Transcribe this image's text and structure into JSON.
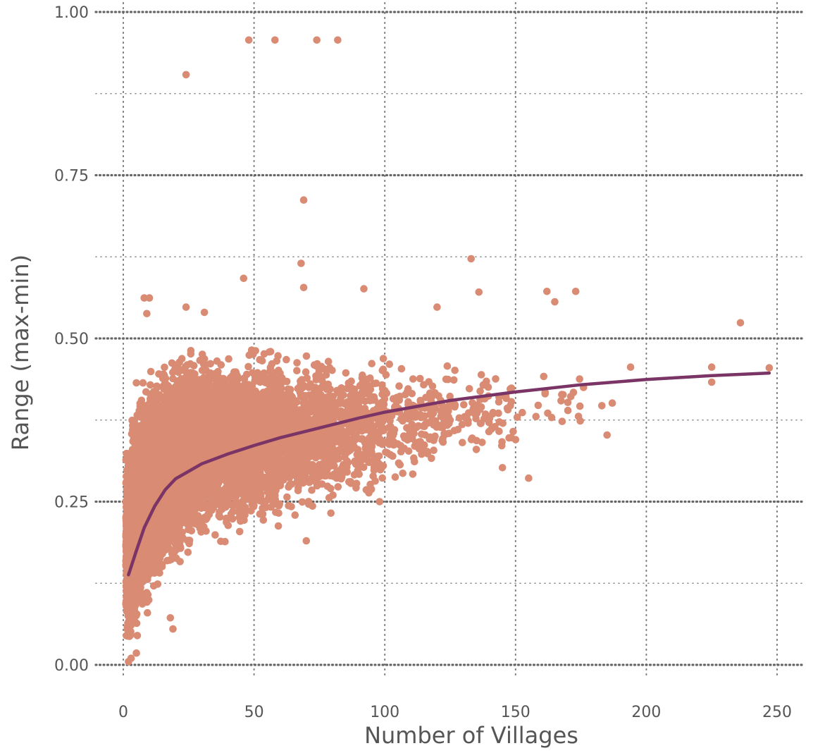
{
  "chart_data": {
    "type": "scatter",
    "title": "",
    "xlabel": "Number of Villages",
    "ylabel": "Range (max-min)",
    "xlim": [
      -5,
      252
    ],
    "ylim": [
      -0.03,
      1.0
    ],
    "x_ticks": [
      {
        "value": 0,
        "label": "0"
      },
      {
        "value": 50,
        "label": "50"
      },
      {
        "value": 100,
        "label": "100"
      },
      {
        "value": 150,
        "label": "150"
      },
      {
        "value": 200,
        "label": "200"
      },
      {
        "value": 250,
        "label": "250"
      }
    ],
    "y_ticks": [
      {
        "value": 0.0,
        "label": "0.00"
      },
      {
        "value": 0.25,
        "label": "0.25"
      },
      {
        "value": 0.5,
        "label": "0.50"
      },
      {
        "value": 0.75,
        "label": "0.75"
      },
      {
        "value": 1.0,
        "label": "1.00"
      }
    ],
    "grid": true,
    "legend": "none",
    "colors": {
      "points": "#d98b73",
      "trend": "#7a3566",
      "grid": "#666666",
      "text": "#555555"
    },
    "series": [
      {
        "kind": "points",
        "points": [
          [
            24,
            0.904
          ],
          [
            48,
            0.957
          ],
          [
            58,
            0.957
          ],
          [
            74,
            0.957
          ],
          [
            82,
            0.957
          ],
          [
            69,
            0.712
          ],
          [
            68,
            0.615
          ],
          [
            133,
            0.622
          ],
          [
            46,
            0.592
          ],
          [
            69,
            0.578
          ],
          [
            92,
            0.576
          ],
          [
            173,
            0.572
          ],
          [
            162,
            0.572
          ],
          [
            136,
            0.571
          ],
          [
            120,
            0.548
          ],
          [
            165,
            0.556
          ],
          [
            236,
            0.524
          ],
          [
            247,
            0.455
          ],
          [
            225,
            0.456
          ],
          [
            225,
            0.433
          ],
          [
            194,
            0.456
          ],
          [
            185,
            0.352
          ],
          [
            187,
            0.401
          ],
          [
            183,
            0.397
          ],
          [
            155,
            0.286
          ],
          [
            145,
            0.302
          ],
          [
            150,
            0.345
          ],
          [
            148,
            0.397
          ],
          [
            176,
            0.425
          ],
          [
            170,
            0.402
          ],
          [
            5,
            0.432
          ],
          [
            8,
            0.562
          ],
          [
            10,
            0.562
          ],
          [
            9,
            0.538
          ],
          [
            24,
            0.548
          ],
          [
            31,
            0.54
          ],
          [
            18,
            0.072
          ],
          [
            19,
            0.055
          ],
          [
            3,
            0.01
          ],
          [
            5,
            0.018
          ],
          [
            2,
            0.005
          ],
          [
            5,
            0.35
          ],
          [
            70,
            0.19
          ],
          [
            98,
            0.25
          ],
          [
            135,
            0.33
          ]
        ]
      },
      {
        "kind": "trend",
        "points": [
          [
            2,
            0.138
          ],
          [
            5,
            0.175
          ],
          [
            8,
            0.21
          ],
          [
            12,
            0.243
          ],
          [
            16,
            0.268
          ],
          [
            20,
            0.285
          ],
          [
            30,
            0.308
          ],
          [
            40,
            0.323
          ],
          [
            50,
            0.336
          ],
          [
            60,
            0.348
          ],
          [
            75,
            0.363
          ],
          [
            90,
            0.378
          ],
          [
            100,
            0.387
          ],
          [
            125,
            0.405
          ],
          [
            150,
            0.418
          ],
          [
            175,
            0.429
          ],
          [
            200,
            0.437
          ],
          [
            225,
            0.443
          ],
          [
            247,
            0.447
          ]
        ]
      },
      {
        "kind": "cloud",
        "regions": [
          {
            "x_min": 1,
            "x_max": 3,
            "y_min": 0.0,
            "y_max": 0.35,
            "count": 500
          },
          {
            "x_min": 3,
            "x_max": 6,
            "y_min": 0.03,
            "y_max": 0.4,
            "count": 600
          },
          {
            "x_min": 6,
            "x_max": 10,
            "y_min": 0.06,
            "y_max": 0.45,
            "count": 900
          },
          {
            "x_min": 10,
            "x_max": 15,
            "y_min": 0.1,
            "y_max": 0.47,
            "count": 1000
          },
          {
            "x_min": 15,
            "x_max": 22,
            "y_min": 0.13,
            "y_max": 0.49,
            "count": 1100
          },
          {
            "x_min": 22,
            "x_max": 32,
            "y_min": 0.16,
            "y_max": 0.5,
            "count": 1100
          },
          {
            "x_min": 32,
            "x_max": 45,
            "y_min": 0.18,
            "y_max": 0.5,
            "count": 1000
          },
          {
            "x_min": 45,
            "x_max": 60,
            "y_min": 0.2,
            "y_max": 0.5,
            "count": 800
          },
          {
            "x_min": 60,
            "x_max": 80,
            "y_min": 0.22,
            "y_max": 0.49,
            "count": 600
          },
          {
            "x_min": 80,
            "x_max": 100,
            "y_min": 0.24,
            "y_max": 0.48,
            "count": 350
          },
          {
            "x_min": 100,
            "x_max": 125,
            "y_min": 0.27,
            "y_max": 0.47,
            "count": 180
          },
          {
            "x_min": 125,
            "x_max": 150,
            "y_min": 0.3,
            "y_max": 0.46,
            "count": 70
          },
          {
            "x_min": 150,
            "x_max": 175,
            "y_min": 0.33,
            "y_max": 0.46,
            "count": 20
          }
        ]
      }
    ]
  }
}
